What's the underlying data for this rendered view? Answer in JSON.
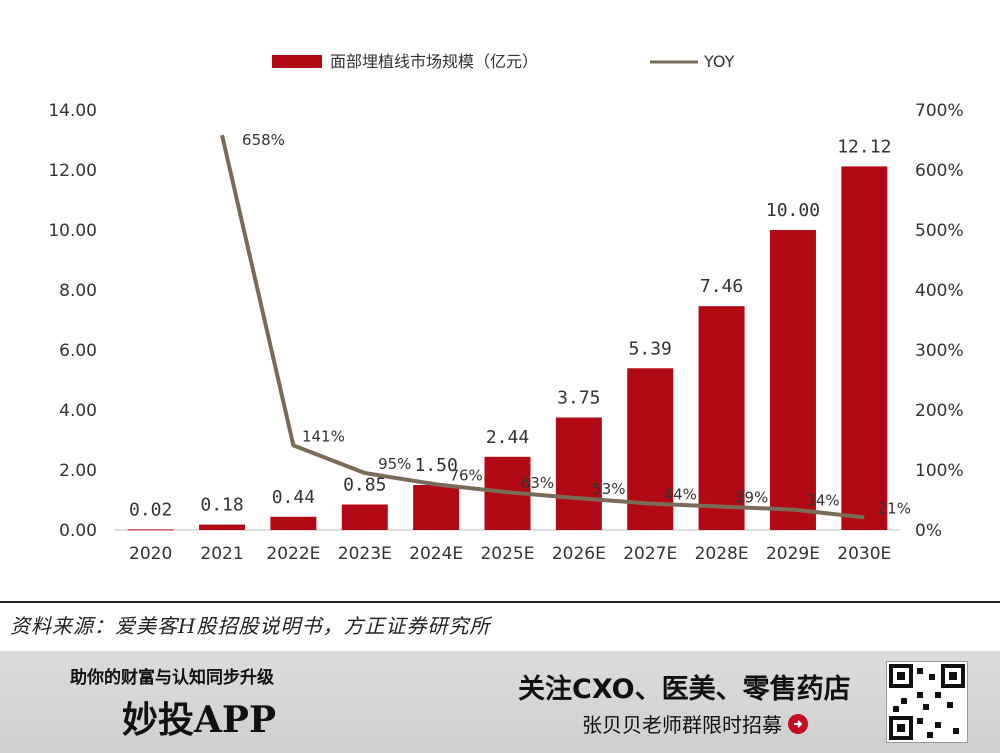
{
  "chart_data": {
    "type": "bar",
    "categories": [
      "2020",
      "2021",
      "2022E",
      "2023E",
      "2024E",
      "2025E",
      "2026E",
      "2027E",
      "2028E",
      "2029E",
      "2030E"
    ],
    "series": [
      {
        "name": "面部埋植线市场规模（亿元）",
        "type": "bar",
        "axis": "left",
        "color": "#b10a14",
        "values": [
          0.02,
          0.18,
          0.44,
          0.85,
          1.5,
          2.44,
          3.75,
          5.39,
          7.46,
          10.0,
          12.12
        ],
        "labels": [
          "0.02",
          "0.18",
          "0.44",
          "0.85",
          "1.50",
          "2.44",
          "3.75",
          "5.39",
          "7.46",
          "10.00",
          "12.12"
        ]
      },
      {
        "name": "YOY",
        "type": "line",
        "axis": "right",
        "color": "#7a6a58",
        "values": [
          null,
          658,
          141,
          95,
          76,
          63,
          53,
          44,
          39,
          34,
          21
        ],
        "labels": [
          "",
          "658%",
          "141%",
          "95%",
          "76%",
          "63%",
          "53%",
          "44%",
          "39%",
          "34%",
          "21%"
        ]
      }
    ],
    "left_axis": {
      "ylim": [
        0,
        14
      ],
      "ticks": [
        "0.00",
        "2.00",
        "4.00",
        "6.00",
        "8.00",
        "10.00",
        "12.00",
        "14.00"
      ]
    },
    "right_axis": {
      "ylim": [
        0,
        700
      ],
      "ticks": [
        "0%",
        "100%",
        "200%",
        "300%",
        "400%",
        "500%",
        "600%",
        "700%"
      ]
    },
    "legend_position": "top-center",
    "grid": false
  },
  "source": "资料来源：爱美客H股招股说明书，方正证券研究所",
  "banner": {
    "slogan": "助你的财富与认知同步升级",
    "brand": "妙投APP",
    "follow": "关注CXO、医美、零售药店",
    "recruit": "张贝贝老师群限时招募"
  },
  "icons": {
    "arrow": "arrow-right-circle-icon",
    "qr": "qr-code-icon"
  }
}
